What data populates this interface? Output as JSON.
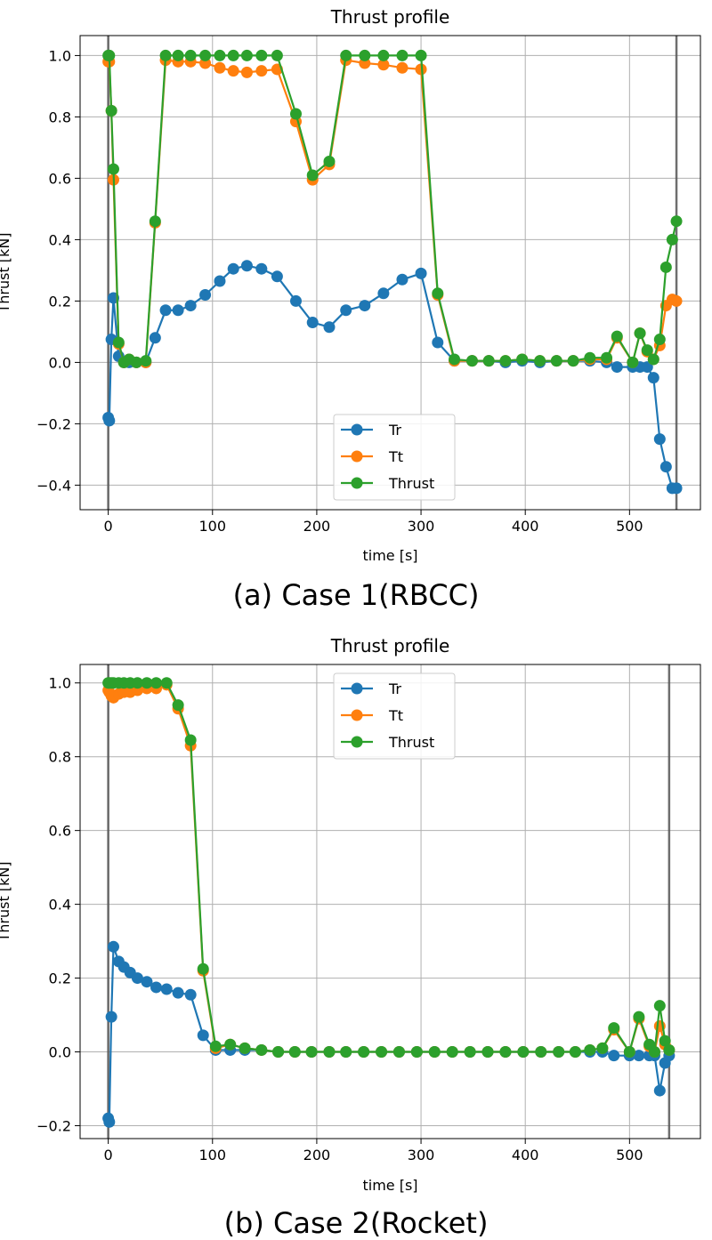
{
  "chart_data": [
    {
      "type": "line",
      "title": "Thrust profile",
      "xlabel": "time [s]",
      "ylabel": "Thrust [kN]",
      "caption": "(a) Case 1(RBCC)",
      "xlim": [
        -27,
        568
      ],
      "ylim": [
        -0.48,
        1.065
      ],
      "xticks": [
        0,
        100,
        200,
        300,
        400,
        500
      ],
      "yticks": [
        -0.4,
        -0.2,
        0.0,
        0.2,
        0.4,
        0.6,
        0.8,
        1.0
      ],
      "ytick_labels": [
        "−0.4",
        "−0.2",
        "0.0",
        "0.2",
        "0.4",
        "0.6",
        "0.8",
        "1.0"
      ],
      "xtick_labels": [
        "0",
        "100",
        "200",
        "300",
        "400",
        "500"
      ],
      "vlines": [
        0,
        545
      ],
      "grid": true,
      "legend": "lower-center",
      "series": [
        {
          "name": "Tr",
          "color": "#1f77b4",
          "x": [
            0,
            1,
            3,
            5,
            10,
            15,
            20,
            27,
            36,
            45,
            55,
            67,
            79,
            93,
            107,
            120,
            133,
            147,
            162,
            180,
            196,
            212,
            228,
            246,
            264,
            282,
            300,
            316,
            332,
            349,
            365,
            381,
            397,
            414,
            430,
            446,
            462,
            478,
            488,
            503,
            510,
            517,
            523,
            529,
            535,
            541,
            545
          ],
          "y": [
            -0.18,
            -0.19,
            0.075,
            0.21,
            0.02,
            0.0,
            0.0,
            0.0,
            0.0,
            0.08,
            0.17,
            0.17,
            0.185,
            0.22,
            0.265,
            0.305,
            0.315,
            0.305,
            0.28,
            0.2,
            0.13,
            0.115,
            0.17,
            0.185,
            0.225,
            0.27,
            0.29,
            0.065,
            0.005,
            0.005,
            0.005,
            0.0,
            0.005,
            0.0,
            0.005,
            0.005,
            0.005,
            0.0,
            -0.015,
            -0.015,
            -0.015,
            -0.015,
            -0.05,
            -0.25,
            -0.34,
            -0.41,
            -0.41
          ]
        },
        {
          "name": "Tt",
          "color": "#ff7f0e",
          "x": [
            0,
            1,
            3,
            5,
            10,
            15,
            20,
            27,
            36,
            45,
            55,
            67,
            79,
            93,
            107,
            120,
            133,
            147,
            162,
            180,
            196,
            212,
            228,
            246,
            264,
            282,
            300,
            316,
            332,
            349,
            365,
            381,
            397,
            414,
            430,
            446,
            462,
            478,
            488,
            503,
            510,
            517,
            523,
            529,
            535,
            541,
            545
          ],
          "y": [
            0.98,
            0.98,
            0.82,
            0.595,
            0.06,
            0.0,
            0.01,
            0.0,
            0.0,
            0.455,
            0.985,
            0.98,
            0.98,
            0.975,
            0.96,
            0.95,
            0.945,
            0.95,
            0.955,
            0.785,
            0.595,
            0.645,
            0.985,
            0.975,
            0.97,
            0.96,
            0.955,
            0.22,
            0.005,
            0.005,
            0.005,
            0.005,
            0.01,
            0.005,
            0.005,
            0.005,
            0.01,
            0.01,
            0.08,
            0.0,
            0.095,
            0.035,
            0.01,
            0.055,
            0.185,
            0.205,
            0.2
          ]
        },
        {
          "name": "Thrust",
          "color": "#2ca02c",
          "x": [
            0,
            1,
            3,
            5,
            10,
            15,
            20,
            27,
            36,
            45,
            55,
            67,
            79,
            93,
            107,
            120,
            133,
            147,
            162,
            180,
            196,
            212,
            228,
            246,
            264,
            282,
            300,
            316,
            332,
            349,
            365,
            381,
            397,
            414,
            430,
            446,
            462,
            478,
            488,
            503,
            510,
            517,
            523,
            529,
            535,
            541,
            545
          ],
          "y": [
            1.0,
            1.0,
            0.82,
            0.63,
            0.065,
            0.0,
            0.01,
            0.0,
            0.005,
            0.46,
            1.0,
            1.0,
            1.0,
            1.0,
            1.0,
            1.0,
            1.0,
            1.0,
            1.0,
            0.81,
            0.61,
            0.655,
            1.0,
            1.0,
            1.0,
            1.0,
            1.0,
            0.225,
            0.01,
            0.005,
            0.005,
            0.005,
            0.01,
            0.005,
            0.005,
            0.005,
            0.015,
            0.015,
            0.085,
            0.0,
            0.095,
            0.04,
            0.01,
            0.075,
            0.31,
            0.4,
            0.46
          ]
        }
      ]
    },
    {
      "type": "line",
      "title": "Thrust profile",
      "xlabel": "time [s]",
      "ylabel": "Thrust [kN]",
      "caption": "(b) Case 2(Rocket)",
      "xlim": [
        -27,
        568
      ],
      "ylim": [
        -0.235,
        1.05
      ],
      "xticks": [
        0,
        100,
        200,
        300,
        400,
        500
      ],
      "yticks": [
        -0.2,
        0.0,
        0.2,
        0.4,
        0.6,
        0.8,
        1.0
      ],
      "ytick_labels": [
        "−0.2",
        "0.0",
        "0.2",
        "0.4",
        "0.6",
        "0.8",
        "1.0"
      ],
      "xtick_labels": [
        "0",
        "100",
        "200",
        "300",
        "400",
        "500"
      ],
      "vlines": [
        0,
        538
      ],
      "grid": true,
      "legend": "top-center",
      "series": [
        {
          "name": "Tr",
          "color": "#1f77b4",
          "x": [
            0,
            1,
            3,
            5,
            10,
            15,
            21,
            28,
            37,
            46,
            56,
            67,
            79,
            91,
            103,
            117,
            131,
            147,
            163,
            179,
            195,
            212,
            228,
            245,
            262,
            279,
            296,
            313,
            330,
            347,
            364,
            381,
            398,
            415,
            432,
            448,
            462,
            474,
            485,
            500,
            509,
            519,
            524,
            529,
            534,
            538
          ],
          "y": [
            -0.18,
            -0.19,
            0.095,
            0.285,
            0.245,
            0.23,
            0.215,
            0.2,
            0.19,
            0.175,
            0.17,
            0.16,
            0.155,
            0.045,
            0.005,
            0.005,
            0.005,
            0.005,
            0.0,
            0.0,
            0.0,
            0.0,
            0.0,
            0.0,
            0.0,
            0.0,
            0.0,
            0.0,
            0.0,
            0.0,
            0.0,
            0.0,
            0.0,
            0.0,
            0.0,
            0.0,
            0.0,
            0.0,
            -0.01,
            -0.01,
            -0.01,
            -0.01,
            -0.01,
            -0.105,
            -0.03,
            -0.01
          ]
        },
        {
          "name": "Tt",
          "color": "#ff7f0e",
          "x": [
            0,
            1,
            3,
            5,
            10,
            15,
            21,
            28,
            37,
            46,
            56,
            67,
            79,
            91,
            103,
            117,
            131,
            147,
            163,
            179,
            195,
            212,
            228,
            245,
            262,
            279,
            296,
            313,
            330,
            347,
            364,
            381,
            398,
            415,
            432,
            448,
            462,
            474,
            485,
            500,
            509,
            519,
            524,
            529,
            534,
            538
          ],
          "y": [
            0.98,
            0.975,
            0.965,
            0.96,
            0.97,
            0.975,
            0.975,
            0.98,
            0.985,
            0.985,
            0.995,
            0.93,
            0.83,
            0.22,
            0.01,
            0.02,
            0.01,
            0.005,
            0.0,
            0.0,
            0.0,
            0.0,
            0.0,
            0.0,
            0.0,
            0.0,
            0.0,
            0.0,
            0.0,
            0.0,
            0.0,
            0.0,
            0.0,
            0.0,
            0.0,
            0.0,
            0.005,
            0.01,
            0.06,
            0.0,
            0.09,
            0.015,
            0.0,
            0.07,
            0.02,
            0.005
          ]
        },
        {
          "name": "Thrust",
          "color": "#2ca02c",
          "x": [
            0,
            1,
            3,
            5,
            10,
            15,
            21,
            28,
            37,
            46,
            56,
            67,
            79,
            91,
            103,
            117,
            131,
            147,
            163,
            179,
            195,
            212,
            228,
            245,
            262,
            279,
            296,
            313,
            330,
            347,
            364,
            381,
            398,
            415,
            432,
            448,
            462,
            474,
            485,
            500,
            509,
            519,
            524,
            529,
            534,
            538
          ],
          "y": [
            1.0,
            1.0,
            1.0,
            1.0,
            1.0,
            1.0,
            1.0,
            1.0,
            1.0,
            1.0,
            1.0,
            0.94,
            0.845,
            0.225,
            0.015,
            0.02,
            0.01,
            0.005,
            0.0,
            0.0,
            0.0,
            0.0,
            0.0,
            0.0,
            0.0,
            0.0,
            0.0,
            0.0,
            0.0,
            0.0,
            0.0,
            0.0,
            0.0,
            0.0,
            0.0,
            0.0,
            0.005,
            0.01,
            0.065,
            0.0,
            0.095,
            0.02,
            0.0,
            0.125,
            0.03,
            0.005
          ]
        }
      ]
    }
  ]
}
